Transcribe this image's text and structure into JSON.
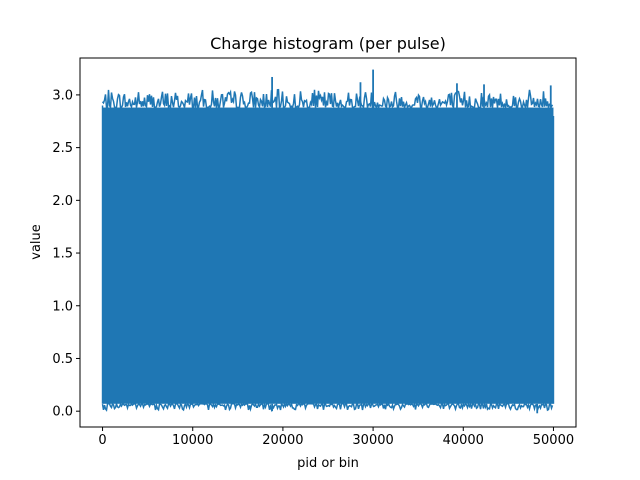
{
  "chart_data": {
    "type": "line",
    "title": "Charge histogram (per pulse)",
    "xlabel": "pid or bin",
    "ylabel": "value",
    "xlim": [
      -2500,
      52500
    ],
    "ylim": [
      -0.15,
      3.35
    ],
    "xticks": [
      0,
      10000,
      20000,
      30000,
      40000,
      50000
    ],
    "yticks": [
      0.0,
      0.5,
      1.0,
      1.5,
      2.0,
      2.5,
      3.0
    ],
    "grid": false,
    "legend": "none",
    "color": "#1f77b4",
    "series": [
      {
        "x_range": [
          0,
          50000
        ],
        "band_low": 0.07,
        "band_high": 2.88,
        "typical_peak_max": 3.05,
        "peaks": [
          {
            "x": 18800,
            "y": 3.17
          },
          {
            "x": 28600,
            "y": 3.12
          },
          {
            "x": 30000,
            "y": 3.24
          },
          {
            "x": 39300,
            "y": 3.11
          },
          {
            "x": 42300,
            "y": 3.1
          },
          {
            "x": 49700,
            "y": 3.09
          }
        ],
        "troughs": [
          {
            "x": 18800,
            "y": 0.0
          },
          {
            "x": 48200,
            "y": -0.02
          }
        ]
      }
    ]
  }
}
